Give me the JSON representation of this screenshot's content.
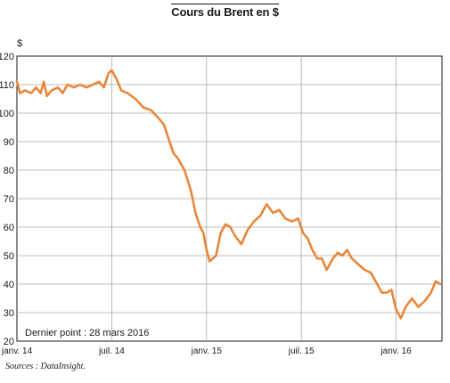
{
  "chart_data": {
    "type": "line",
    "title": "Cours du Brent en $",
    "ylabel": "$",
    "ylim": [
      20,
      120
    ],
    "yticks": [
      20,
      30,
      40,
      50,
      60,
      70,
      80,
      90,
      100,
      110,
      120
    ],
    "x_ticks": [
      {
        "t": 0,
        "label": "janv. 14"
      },
      {
        "t": 6,
        "label": "juil. 14"
      },
      {
        "t": 12,
        "label": "janv. 15"
      },
      {
        "t": 18,
        "label": "juil. 15"
      },
      {
        "t": 24,
        "label": "janv. 16"
      }
    ],
    "xlim": [
      0,
      26.9
    ],
    "grid": true,
    "line_color": "#e8873a",
    "series": [
      {
        "x": [
          0.0,
          0.2,
          0.5,
          0.9,
          1.2,
          1.5,
          1.7,
          1.9,
          2.2,
          2.6,
          2.9,
          3.2,
          3.6,
          4.0,
          4.4,
          4.8,
          5.2,
          5.5,
          5.8,
          6.0,
          6.3,
          6.6,
          7.0,
          7.5,
          8.0,
          8.5,
          9.0,
          9.3,
          9.6,
          9.9,
          10.2,
          10.6,
          11.0,
          11.3,
          11.6,
          11.8,
          12.0,
          12.2,
          12.4,
          12.6,
          12.9,
          13.2,
          13.5,
          13.8,
          14.2,
          14.6,
          15.0,
          15.4,
          15.8,
          16.2,
          16.6,
          17.0,
          17.4,
          17.8,
          18.1,
          18.4,
          18.7,
          19.0,
          19.3,
          19.6,
          20.0,
          20.3,
          20.6,
          20.9,
          21.2,
          21.6,
          22.0,
          22.4,
          22.8,
          23.1,
          23.4,
          23.7,
          24.0,
          24.3,
          24.6,
          25.0,
          25.4,
          25.8,
          26.2,
          26.5,
          26.8
        ],
        "y": [
          111,
          107,
          108,
          107,
          109,
          107,
          111,
          106,
          108,
          109,
          107,
          110,
          109,
          110,
          109,
          110,
          111,
          109,
          114,
          115,
          112,
          108,
          107,
          105,
          102,
          101,
          98,
          96,
          91,
          86,
          84,
          80,
          73,
          65,
          60,
          58,
          52,
          48,
          49,
          50,
          58,
          61,
          60,
          57,
          54,
          59,
          62,
          64,
          68,
          65,
          66,
          63,
          62,
          63,
          58,
          56,
          52,
          49,
          49,
          45,
          49,
          51,
          50,
          52,
          49,
          47,
          45,
          44,
          40,
          37,
          37,
          38,
          31,
          28,
          32,
          35,
          32,
          34,
          37,
          41,
          40
        ]
      }
    ],
    "annotation": "Dernier point : 28 mars 2016",
    "source": "Sources : DataInsight."
  }
}
